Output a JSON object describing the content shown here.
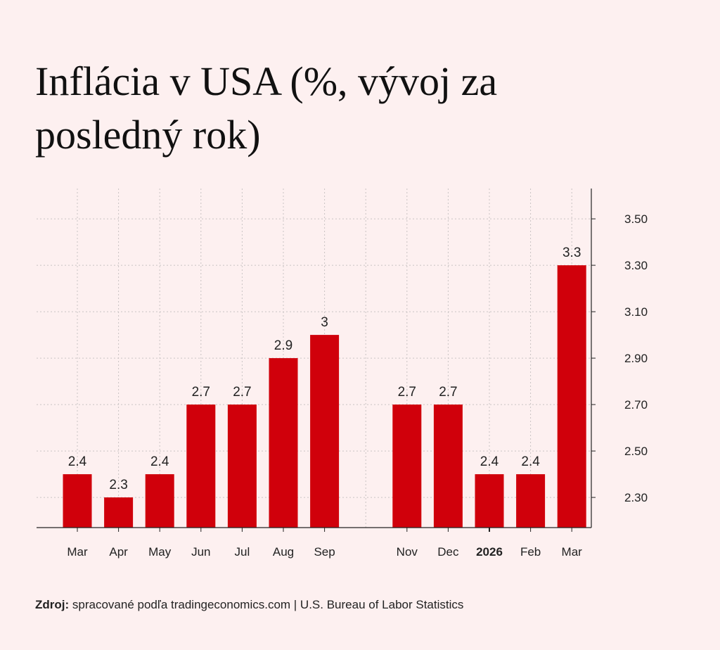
{
  "chart_data": {
    "type": "bar",
    "title": "Inflácia v USA (%, vývoj za posledný rok)",
    "categories": [
      "Mar",
      "Apr",
      "May",
      "Jun",
      "Jul",
      "Aug",
      "Sep",
      "",
      "Nov",
      "Dec",
      "2026",
      "Feb",
      "Mar"
    ],
    "values": [
      2.4,
      2.3,
      2.4,
      2.7,
      2.7,
      2.9,
      3,
      null,
      2.7,
      2.7,
      2.4,
      2.4,
      3.3
    ],
    "value_labels": [
      "2.4",
      "2.3",
      "2.4",
      "2.7",
      "2.7",
      "2.9",
      "3",
      "",
      "2.7",
      "2.7",
      "2.4",
      "2.4",
      "3.3"
    ],
    "bold_categories": [
      "2026"
    ],
    "y_ticks": [
      2.3,
      2.5,
      2.7,
      2.9,
      3.1,
      3.3,
      3.5
    ],
    "y_tick_labels": [
      "2.30",
      "2.50",
      "2.70",
      "2.90",
      "3.10",
      "3.30",
      "3.50"
    ],
    "ylim": [
      2.17,
      3.63
    ],
    "y_axis_position": "right",
    "grid": true,
    "xlabel": "",
    "ylabel": "",
    "bar_color": "#d0000b"
  },
  "source": {
    "label": "Zdroj:",
    "text": "spracované podľa tradingeconomics.com | U.S. Bureau of Labor Statistics"
  }
}
